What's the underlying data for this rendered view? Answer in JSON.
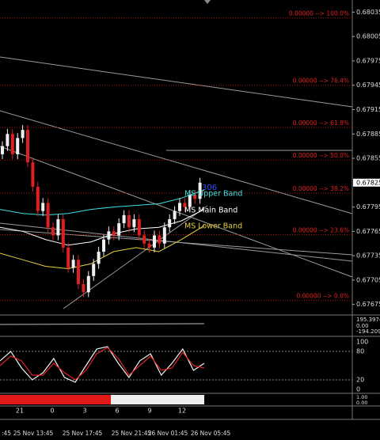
{
  "price_axis": {
    "ylim": [
      0.67662,
      0.6805
    ],
    "ticks": [
      0.68035,
      0.68005,
      0.67975,
      0.67945,
      0.67915,
      0.67885,
      0.67855,
      0.67795,
      0.67765,
      0.67735,
      0.67705,
      0.67675
    ],
    "current": 0.67825
  },
  "fib_levels": [
    {
      "label": "0.00000 --> 100.0%",
      "price": 0.68028
    },
    {
      "label": "0.00000 --> 76.4%",
      "price": 0.67945
    },
    {
      "label": "0.00000 --> 61.8%",
      "price": 0.67893
    },
    {
      "label": "0.00000 --> 50.0%",
      "price": 0.67853
    },
    {
      "label": "0.00000 --> 38.2%",
      "price": 0.67812
    },
    {
      "label": "0.00000 --> 23.6%",
      "price": 0.67761
    },
    {
      "label": "0.00000 --> 0.0%",
      "price": 0.6768
    }
  ],
  "candles": [
    [
      0.6786,
      0.67876,
      0.67854,
      0.6787
    ],
    [
      0.6787,
      0.67891,
      0.67864,
      0.67885
    ],
    [
      0.67885,
      0.67891,
      0.67854,
      0.6786
    ],
    [
      0.6786,
      0.67886,
      0.67854,
      0.6788
    ],
    [
      0.6788,
      0.67896,
      0.67874,
      0.6789
    ],
    [
      0.6789,
      0.67896,
      0.67844,
      0.6785
    ],
    [
      0.6785,
      0.67856,
      0.67814,
      0.6782
    ],
    [
      0.6782,
      0.67826,
      0.67784,
      0.6779
    ],
    [
      0.6779,
      0.67806,
      0.67784,
      0.678
    ],
    [
      0.678,
      0.67806,
      0.67764,
      0.6777
    ],
    [
      0.6777,
      0.67776,
      0.67754,
      0.6776
    ],
    [
      0.6776,
      0.67786,
      0.67754,
      0.6778
    ],
    [
      0.6778,
      0.67786,
      0.67739,
      0.67745
    ],
    [
      0.67745,
      0.67751,
      0.67714,
      0.6772
    ],
    [
      0.6772,
      0.67736,
      0.67714,
      0.6773
    ],
    [
      0.6773,
      0.67736,
      0.67694,
      0.677
    ],
    [
      0.677,
      0.67706,
      0.67684,
      0.6769
    ],
    [
      0.6769,
      0.67716,
      0.67684,
      0.6771
    ],
    [
      0.6771,
      0.67731,
      0.67704,
      0.67725
    ],
    [
      0.67725,
      0.67746,
      0.67719,
      0.6774
    ],
    [
      0.6774,
      0.67761,
      0.67734,
      0.67755
    ],
    [
      0.67755,
      0.67771,
      0.67749,
      0.67765
    ],
    [
      0.67765,
      0.67771,
      0.67754,
      0.6776
    ],
    [
      0.6776,
      0.67781,
      0.67754,
      0.67775
    ],
    [
      0.67775,
      0.67791,
      0.67769,
      0.67785
    ],
    [
      0.67785,
      0.67791,
      0.67764,
      0.6777
    ],
    [
      0.6777,
      0.67786,
      0.67764,
      0.6778
    ],
    [
      0.6778,
      0.67786,
      0.67754,
      0.6776
    ],
    [
      0.6776,
      0.67766,
      0.67744,
      0.6775
    ],
    [
      0.6775,
      0.67756,
      0.67739,
      0.67745
    ],
    [
      0.67745,
      0.67766,
      0.67739,
      0.6776
    ],
    [
      0.6776,
      0.67766,
      0.67744,
      0.6775
    ],
    [
      0.6775,
      0.67776,
      0.67744,
      0.6777
    ],
    [
      0.6777,
      0.67786,
      0.67764,
      0.6778
    ],
    [
      0.6778,
      0.67796,
      0.67774,
      0.6779
    ],
    [
      0.6779,
      0.67806,
      0.67784,
      0.678
    ],
    [
      0.678,
      0.67806,
      0.67789,
      0.67795
    ],
    [
      0.67795,
      0.67816,
      0.67789,
      0.6781
    ],
    [
      0.6781,
      0.67816,
      0.67799,
      0.67805
    ],
    [
      0.67805,
      0.67831,
      0.67799,
      0.67825
    ]
  ],
  "bands": [
    {
      "name": "MS Upper Band",
      "color": "#40e0e0",
      "values": [
        0.67792,
        0.67787,
        0.67785,
        0.67787,
        0.67792,
        0.67795,
        0.67797,
        0.67799,
        0.67806,
        0.67816
      ]
    },
    {
      "name": "MS Main Band",
      "color": "#ffffff",
      "values": [
        0.6777,
        0.67765,
        0.67755,
        0.67748,
        0.67752,
        0.67762,
        0.67768,
        0.6777,
        0.67778,
        0.67792
      ]
    },
    {
      "name": "MS Lower Band",
      "color": "#e8d040",
      "values": [
        0.67738,
        0.6773,
        0.67722,
        0.67719,
        0.67725,
        0.6774,
        0.67745,
        0.6774,
        0.67755,
        0.67772
      ]
    }
  ],
  "counter_label": "306",
  "indicator1_labels": [
    "195.3974",
    "0.00",
    "-194.209"
  ],
  "stochastic": {
    "ylim": [
      0,
      100
    ],
    "ticks": [
      100,
      80,
      20,
      0
    ],
    "main": [
      60,
      80,
      45,
      20,
      35,
      65,
      25,
      15,
      50,
      85,
      90,
      55,
      25,
      60,
      75,
      30,
      55,
      85,
      40,
      55
    ],
    "signal": [
      50,
      70,
      60,
      30,
      30,
      55,
      35,
      20,
      40,
      75,
      88,
      65,
      30,
      50,
      70,
      40,
      45,
      78,
      50,
      45
    ]
  },
  "indicator3_labels": [
    "1.00",
    "0.00"
  ],
  "hour_labels": [
    "21",
    "0",
    "3",
    "6",
    "9",
    "12"
  ],
  "date_labels": [
    ":45",
    "25 Nov 13:45",
    "25 Nov 17:45",
    "25 Nov 21:45",
    "26 Nov 01:45",
    "26 Nov 05:45"
  ]
}
